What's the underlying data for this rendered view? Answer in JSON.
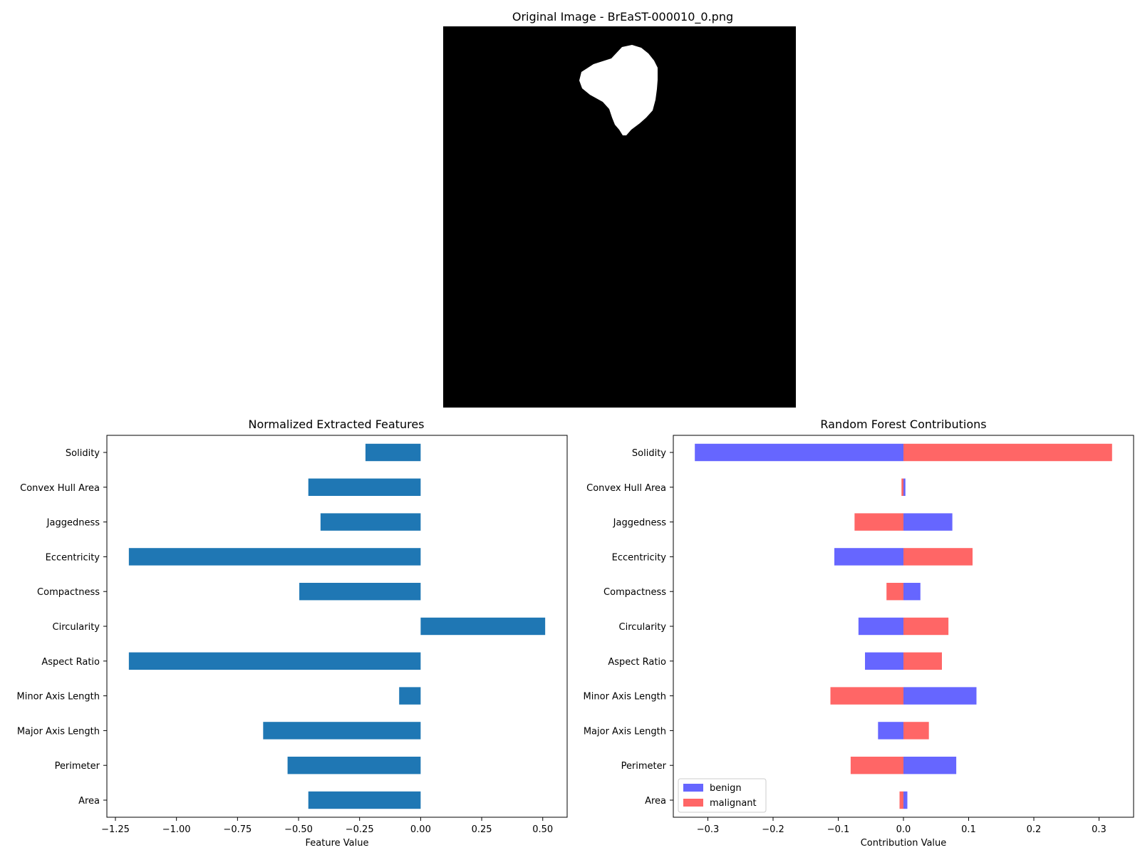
{
  "image_panel": {
    "title": "Original Image - BrEaST-000010_0.png"
  },
  "chart_data": [
    {
      "type": "bar",
      "orientation": "horizontal",
      "title": "Normalized Extracted Features",
      "xlabel": "Feature Value",
      "ylabel": "",
      "xlim": [
        -1.285,
        0.6
      ],
      "xticks": [
        -1.25,
        -1.0,
        -0.75,
        -0.5,
        -0.25,
        0.0,
        0.25,
        0.5
      ],
      "xtick_labels": [
        "−1.25",
        "−1.00",
        "−0.75",
        "−0.50",
        "−0.25",
        "0.00",
        "0.25",
        "0.50"
      ],
      "categories": [
        "Area",
        "Perimeter",
        "Major Axis Length",
        "Minor Axis Length",
        "Aspect Ratio",
        "Circularity",
        "Compactness",
        "Eccentricity",
        "Jaggedness",
        "Convex Hull Area",
        "Solidity"
      ],
      "values": [
        -0.46,
        -0.545,
        -0.645,
        -0.088,
        -1.195,
        0.51,
        -0.497,
        -1.195,
        -0.41,
        -0.46,
        -0.226
      ],
      "color": "#1f77b4",
      "legend": null
    },
    {
      "type": "bar",
      "orientation": "horizontal",
      "stacked": "diverging",
      "title": "Random Forest Contributions",
      "xlabel": "Contribution Value",
      "ylabel": "",
      "xlim": [
        -0.353,
        0.353
      ],
      "xticks": [
        -0.3,
        -0.2,
        -0.1,
        0.0,
        0.1,
        0.2,
        0.3
      ],
      "xtick_labels": [
        "−0.3",
        "−0.2",
        "−0.1",
        "0.0",
        "0.1",
        "0.2",
        "0.3"
      ],
      "categories": [
        "Area",
        "Perimeter",
        "Major Axis Length",
        "Minor Axis Length",
        "Aspect Ratio",
        "Circularity",
        "Compactness",
        "Eccentricity",
        "Jaggedness",
        "Convex Hull Area",
        "Solidity"
      ],
      "series": [
        {
          "name": "benign",
          "color": "#6666ff",
          "values": [
            0.006,
            0.081,
            -0.039,
            0.112,
            -0.059,
            -0.069,
            0.026,
            -0.106,
            0.075,
            0.003,
            -0.32
          ]
        },
        {
          "name": "malignant",
          "color": "#ff6666",
          "values": [
            -0.006,
            -0.081,
            0.039,
            -0.112,
            0.059,
            0.069,
            -0.026,
            0.106,
            -0.075,
            -0.003,
            0.32
          ]
        }
      ],
      "legend": "lower-left"
    }
  ]
}
